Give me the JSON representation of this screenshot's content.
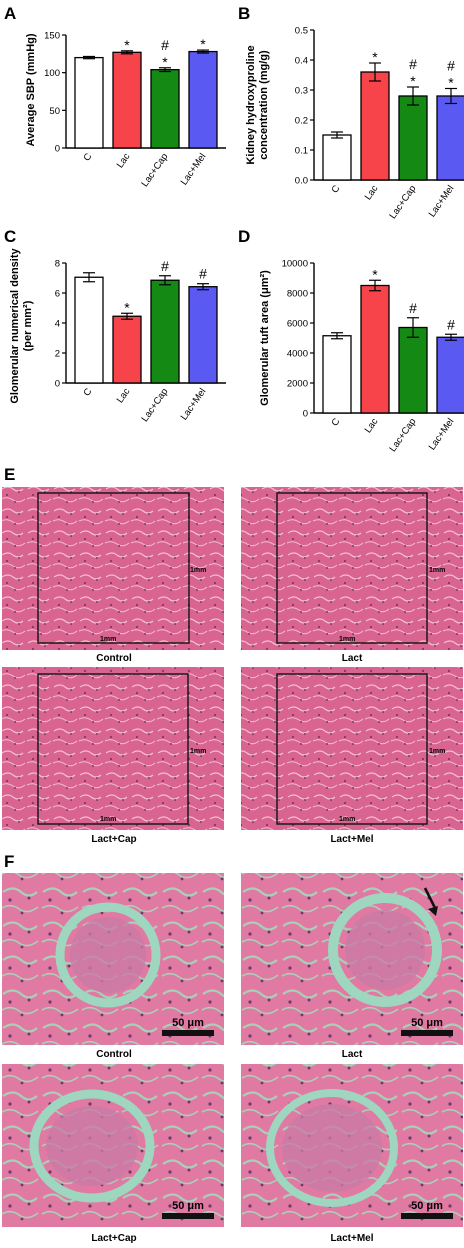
{
  "panel_labels": [
    "A",
    "B",
    "C",
    "D",
    "E",
    "F"
  ],
  "chart_data": [
    {
      "type": "bar",
      "panel": "A",
      "categories": [
        "C",
        "Lac",
        "Lac+Cap",
        "Lac+Mel"
      ],
      "values": [
        120,
        127,
        104,
        128
      ],
      "errors": [
        1.5,
        2,
        2.5,
        2
      ],
      "ylabel": "Average SBP (mmHg)",
      "ylim": [
        0,
        150
      ],
      "yticks": [
        0,
        50,
        100,
        150
      ],
      "significance": [
        [],
        [
          "*"
        ],
        [
          "#",
          "*"
        ],
        [
          "*"
        ]
      ]
    },
    {
      "type": "bar",
      "panel": "B",
      "categories": [
        "C",
        "Lac",
        "Lac+Cap",
        "Lac+Mel"
      ],
      "values": [
        0.15,
        0.36,
        0.28,
        0.28
      ],
      "errors": [
        0.01,
        0.03,
        0.03,
        0.025
      ],
      "ylabel_lines": [
        "Kidney hydroxyproline",
        "concentration (mg/g)"
      ],
      "ylim": [
        0,
        0.5
      ],
      "yticks": [
        "0.0",
        "0.1",
        "0.2",
        "0.3",
        "0.4",
        "0.5"
      ],
      "significance": [
        [],
        [
          "*"
        ],
        [
          "#",
          "*"
        ],
        [
          "#",
          "*"
        ]
      ]
    },
    {
      "type": "bar",
      "panel": "C",
      "categories": [
        "C",
        "Lac",
        "Lac+Cap",
        "Lac+Mel"
      ],
      "values": [
        7.05,
        4.45,
        6.85,
        6.42
      ],
      "errors": [
        0.3,
        0.2,
        0.3,
        0.2
      ],
      "ylabel_lines": [
        "Glomerular numerical density",
        "(per mm²)"
      ],
      "ylim": [
        0,
        8
      ],
      "yticks": [
        0,
        2,
        4,
        6,
        8
      ],
      "significance": [
        [],
        [
          "*"
        ],
        [
          "#"
        ],
        [
          "#"
        ]
      ]
    },
    {
      "type": "bar",
      "panel": "D",
      "categories": [
        "C",
        "Lac",
        "Lac+Cap",
        "Lac+Mel"
      ],
      "values": [
        5150,
        8500,
        5700,
        5050
      ],
      "errors": [
        200,
        350,
        650,
        200
      ],
      "ylabel": "Glomerular tuft area (μm²)",
      "ylim": [
        0,
        10000
      ],
      "yticks": [
        0,
        2000,
        4000,
        6000,
        8000,
        10000
      ],
      "significance": [
        [],
        [
          "*"
        ],
        [
          "#"
        ],
        [
          "#"
        ]
      ]
    }
  ],
  "colors": {
    "bars": [
      "#ffffff",
      "#f7434a",
      "#148a14",
      "#5a5af2"
    ],
    "axis": "#000000",
    "tissue_bg": "#d25c8c",
    "tissue_stroke": "#f0b8cc",
    "lumen": "#a8c8b0",
    "capsule": "#9ed6c0",
    "cells": "#6a3a6a"
  },
  "micrographs_E": {
    "captions": [
      "Control",
      "Lact",
      "Lact+Cap",
      "Lact+Mel"
    ],
    "scale_label": "1mm"
  },
  "micrographs_F": {
    "captions": [
      "Control",
      "Lact",
      "Lact+Cap",
      "Lact+Mel"
    ],
    "scale_label": "50 μm"
  }
}
